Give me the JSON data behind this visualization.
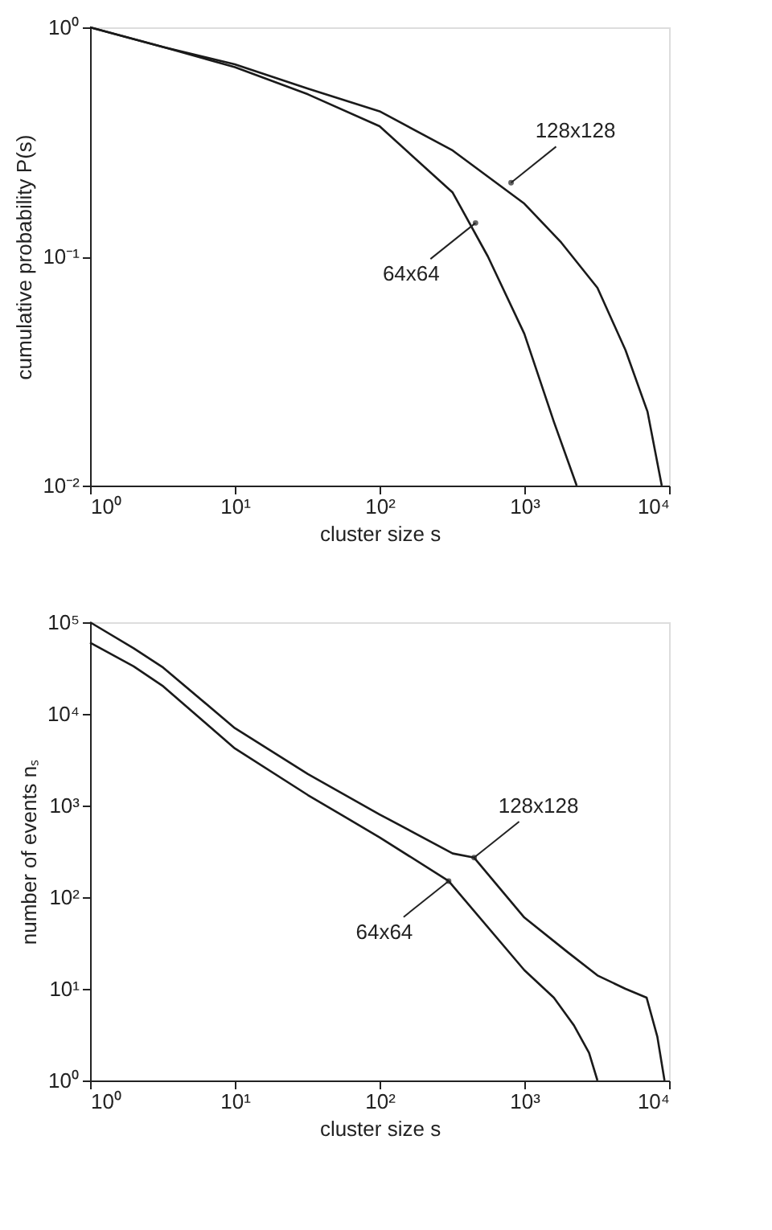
{
  "chart_data": [
    {
      "type": "line",
      "xlabel": "cluster size s",
      "ylabel": "cumulative probability P(s)",
      "log": "xy",
      "grid": false,
      "xlim": [
        1,
        10000
      ],
      "ylim": [
        0.01,
        1
      ],
      "xticks": [
        {
          "value": 1,
          "label": "10⁰"
        },
        {
          "value": 10,
          "label": "10¹"
        },
        {
          "value": 100,
          "label": "10²"
        },
        {
          "value": 1000,
          "label": "10³"
        },
        {
          "value": 10000,
          "label": "10⁴"
        }
      ],
      "yticks": [
        {
          "value": 0.01,
          "label": "10⁻²"
        },
        {
          "value": 0.1,
          "label": "10⁻¹"
        },
        {
          "value": 1,
          "label": "10⁰"
        }
      ],
      "series": [
        {
          "color": "#1a1a1a",
          "x": [
            1,
            3.2,
            10,
            32,
            100,
            320,
            1000,
            1800,
            3200,
            5000,
            7100,
            8900
          ],
          "values": [
            1,
            0.82,
            0.69,
            0.54,
            0.43,
            0.29,
            0.17,
            0.115,
            0.073,
            0.039,
            0.021,
            0.01
          ]
        },
        {
          "color": "#1a1a1a",
          "x": [
            1,
            3.2,
            10,
            32,
            100,
            320,
            560,
            1000,
            1600,
            2300
          ],
          "values": [
            1,
            0.82,
            0.67,
            0.51,
            0.37,
            0.19,
            0.1,
            0.046,
            0.019,
            0.01
          ]
        }
      ],
      "annotations": [
        {
          "text": "128x128",
          "x": 810,
          "y": 0.21
        },
        {
          "text": "64x64",
          "x": 460,
          "y": 0.14
        }
      ]
    },
    {
      "type": "line",
      "xlabel": "cluster size s",
      "ylabel": "number of events nₛ",
      "log": "xy",
      "grid": false,
      "xlim": [
        1,
        10000
      ],
      "ylim": [
        1,
        100000
      ],
      "xticks": [
        {
          "value": 1,
          "label": "10⁰"
        },
        {
          "value": 10,
          "label": "10¹"
        },
        {
          "value": 100,
          "label": "10²"
        },
        {
          "value": 1000,
          "label": "10³"
        },
        {
          "value": 10000,
          "label": "10⁴"
        }
      ],
      "yticks": [
        {
          "value": 1,
          "label": "10⁰"
        },
        {
          "value": 10,
          "label": "10¹"
        },
        {
          "value": 100,
          "label": "10²"
        },
        {
          "value": 1000,
          "label": "10³"
        },
        {
          "value": 10000,
          "label": "10⁴"
        },
        {
          "value": 100000,
          "label": "10⁵"
        }
      ],
      "series": [
        {
          "color": "#1a1a1a",
          "x": [
            1,
            2,
            3.2,
            10,
            32,
            100,
            320,
            450,
            1000,
            2000,
            3200,
            5000,
            7000,
            8300,
            9300
          ],
          "values": [
            100000,
            52000,
            32000,
            7000,
            2200,
            800,
            300,
            270,
            60,
            25,
            14,
            10,
            8,
            3,
            1
          ]
        },
        {
          "color": "#1a1a1a",
          "x": [
            1,
            2,
            3.2,
            10,
            32,
            100,
            300,
            1000,
            1600,
            2200,
            2800,
            3200
          ],
          "values": [
            60000,
            33000,
            20000,
            4200,
            1300,
            450,
            150,
            16,
            8,
            4,
            2,
            1
          ]
        }
      ],
      "annotations": [
        {
          "text": "128x128",
          "x": 450,
          "y": 270
        },
        {
          "text": "64x64",
          "x": 300,
          "y": 150
        }
      ]
    }
  ]
}
